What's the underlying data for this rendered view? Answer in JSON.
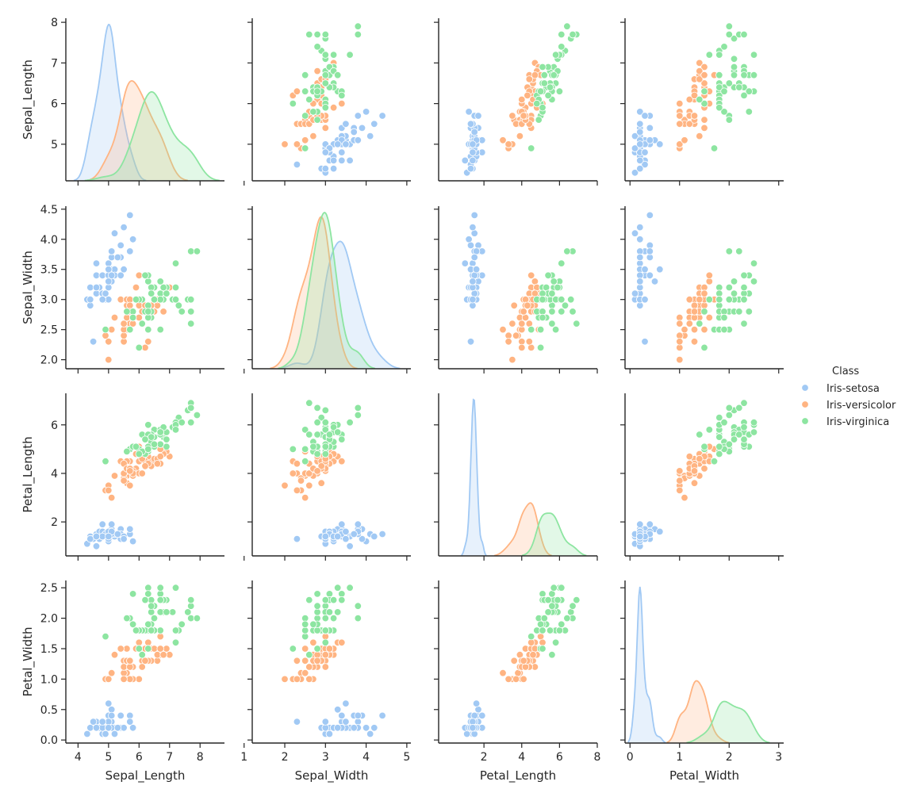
{
  "chart_data": {
    "type": "scatter",
    "variables": [
      "Sepal_Length",
      "Sepal_Width",
      "Petal_Length",
      "Petal_Width"
    ],
    "diagonal": "kde",
    "grid": false,
    "legend": {
      "title": "Class",
      "placement": "right",
      "entries": [
        "Iris-setosa",
        "Iris-versicolor",
        "Iris-virginica"
      ]
    },
    "axes": {
      "Sepal_Length": {
        "ticks": [
          4,
          5,
          6,
          7,
          8
        ],
        "y_range": [
          4.1,
          8.1
        ],
        "x_range": [
          3.6,
          8.8
        ]
      },
      "Sepal_Width": {
        "ticks": [
          1,
          2,
          3,
          4,
          5
        ],
        "ytick_labels": [
          "2.0",
          "2.5",
          "3.0",
          "3.5",
          "4.0",
          "4.5"
        ],
        "ytick_values": [
          2.0,
          2.5,
          3.0,
          3.5,
          4.0,
          4.5
        ],
        "y_range": [
          1.85,
          4.55
        ],
        "x_range": [
          1.2,
          5.1
        ]
      },
      "Petal_Length": {
        "ticks": [
          2,
          4,
          6,
          8
        ],
        "y_range": [
          0.6,
          7.3
        ],
        "x_range": [
          -0.4,
          8.0
        ]
      },
      "Petal_Width": {
        "ticks": [
          0,
          1,
          2,
          3
        ],
        "ytick_labels": [
          "0.0",
          "0.5",
          "1.0",
          "1.5",
          "2.0",
          "2.5"
        ],
        "ytick_values": [
          0.0,
          0.5,
          1.0,
          1.5,
          2.0,
          2.5
        ],
        "y_range": [
          -0.05,
          2.62
        ],
        "x_range": [
          -0.1,
          3.1
        ]
      }
    },
    "series": [
      {
        "name": "Iris-setosa",
        "color": "#a1c9f4",
        "points": [
          [
            5.1,
            3.5,
            1.4,
            0.2
          ],
          [
            4.9,
            3.0,
            1.4,
            0.2
          ],
          [
            4.7,
            3.2,
            1.3,
            0.2
          ],
          [
            4.6,
            3.1,
            1.5,
            0.2
          ],
          [
            5.0,
            3.6,
            1.4,
            0.2
          ],
          [
            5.4,
            3.9,
            1.7,
            0.4
          ],
          [
            4.6,
            3.4,
            1.4,
            0.3
          ],
          [
            5.0,
            3.4,
            1.5,
            0.2
          ],
          [
            4.4,
            2.9,
            1.4,
            0.2
          ],
          [
            4.9,
            3.1,
            1.5,
            0.1
          ],
          [
            5.4,
            3.7,
            1.5,
            0.2
          ],
          [
            4.8,
            3.4,
            1.6,
            0.2
          ],
          [
            4.8,
            3.0,
            1.4,
            0.1
          ],
          [
            4.3,
            3.0,
            1.1,
            0.1
          ],
          [
            5.8,
            4.0,
            1.2,
            0.2
          ],
          [
            5.7,
            4.4,
            1.5,
            0.4
          ],
          [
            5.4,
            3.9,
            1.3,
            0.4
          ],
          [
            5.1,
            3.5,
            1.4,
            0.3
          ],
          [
            5.7,
            3.8,
            1.7,
            0.3
          ],
          [
            5.1,
            3.8,
            1.5,
            0.3
          ],
          [
            5.4,
            3.4,
            1.7,
            0.2
          ],
          [
            5.1,
            3.7,
            1.5,
            0.4
          ],
          [
            4.6,
            3.6,
            1.0,
            0.2
          ],
          [
            5.1,
            3.3,
            1.7,
            0.5
          ],
          [
            4.8,
            3.4,
            1.9,
            0.2
          ],
          [
            5.0,
            3.0,
            1.6,
            0.2
          ],
          [
            5.0,
            3.4,
            1.6,
            0.4
          ],
          [
            5.2,
            3.5,
            1.5,
            0.2
          ],
          [
            5.2,
            3.4,
            1.4,
            0.2
          ],
          [
            4.7,
            3.2,
            1.6,
            0.2
          ],
          [
            4.8,
            3.1,
            1.6,
            0.2
          ],
          [
            5.4,
            3.4,
            1.5,
            0.4
          ],
          [
            5.2,
            4.1,
            1.5,
            0.1
          ],
          [
            5.5,
            4.2,
            1.4,
            0.2
          ],
          [
            4.9,
            3.1,
            1.5,
            0.1
          ],
          [
            5.0,
            3.2,
            1.2,
            0.2
          ],
          [
            5.5,
            3.5,
            1.3,
            0.2
          ],
          [
            4.9,
            3.1,
            1.5,
            0.1
          ],
          [
            4.4,
            3.0,
            1.3,
            0.2
          ],
          [
            5.1,
            3.4,
            1.5,
            0.2
          ],
          [
            5.0,
            3.5,
            1.3,
            0.3
          ],
          [
            4.5,
            2.3,
            1.3,
            0.3
          ],
          [
            4.4,
            3.2,
            1.3,
            0.2
          ],
          [
            5.0,
            3.5,
            1.6,
            0.6
          ],
          [
            5.1,
            3.8,
            1.9,
            0.4
          ],
          [
            4.8,
            3.0,
            1.4,
            0.3
          ],
          [
            5.1,
            3.8,
            1.6,
            0.2
          ],
          [
            4.6,
            3.2,
            1.4,
            0.2
          ],
          [
            5.3,
            3.7,
            1.5,
            0.2
          ],
          [
            5.0,
            3.3,
            1.4,
            0.2
          ]
        ]
      },
      {
        "name": "Iris-versicolor",
        "color": "#ffb482",
        "points": [
          [
            7.0,
            3.2,
            4.7,
            1.4
          ],
          [
            6.4,
            3.2,
            4.5,
            1.5
          ],
          [
            6.9,
            3.1,
            4.9,
            1.5
          ],
          [
            5.5,
            2.3,
            4.0,
            1.3
          ],
          [
            6.5,
            2.8,
            4.6,
            1.5
          ],
          [
            5.7,
            2.8,
            4.5,
            1.3
          ],
          [
            6.3,
            3.3,
            4.7,
            1.6
          ],
          [
            4.9,
            2.4,
            3.3,
            1.0
          ],
          [
            6.6,
            2.9,
            4.6,
            1.3
          ],
          [
            5.2,
            2.7,
            3.9,
            1.4
          ],
          [
            5.0,
            2.0,
            3.5,
            1.0
          ],
          [
            5.9,
            3.0,
            4.2,
            1.5
          ],
          [
            6.0,
            2.2,
            4.0,
            1.0
          ],
          [
            6.1,
            2.9,
            4.7,
            1.4
          ],
          [
            5.6,
            2.9,
            3.6,
            1.3
          ],
          [
            6.7,
            3.1,
            4.4,
            1.4
          ],
          [
            5.6,
            3.0,
            4.5,
            1.5
          ],
          [
            5.8,
            2.7,
            4.1,
            1.0
          ],
          [
            6.2,
            2.2,
            4.5,
            1.5
          ],
          [
            5.6,
            2.5,
            3.9,
            1.1
          ],
          [
            5.9,
            3.2,
            4.8,
            1.8
          ],
          [
            6.1,
            2.8,
            4.0,
            1.3
          ],
          [
            6.3,
            2.5,
            4.9,
            1.5
          ],
          [
            6.1,
            2.8,
            4.7,
            1.2
          ],
          [
            6.4,
            2.9,
            4.3,
            1.3
          ],
          [
            6.6,
            3.0,
            4.4,
            1.4
          ],
          [
            6.8,
            2.8,
            4.8,
            1.4
          ],
          [
            6.7,
            3.0,
            5.0,
            1.7
          ],
          [
            6.0,
            2.9,
            4.5,
            1.5
          ],
          [
            5.7,
            2.6,
            3.5,
            1.0
          ],
          [
            5.5,
            2.4,
            3.8,
            1.1
          ],
          [
            5.5,
            2.4,
            3.7,
            1.0
          ],
          [
            5.8,
            2.7,
            3.9,
            1.2
          ],
          [
            6.0,
            2.7,
            5.1,
            1.6
          ],
          [
            5.4,
            3.0,
            4.5,
            1.5
          ],
          [
            6.0,
            3.4,
            4.5,
            1.6
          ],
          [
            6.7,
            3.1,
            4.7,
            1.5
          ],
          [
            6.3,
            2.3,
            4.4,
            1.3
          ],
          [
            5.6,
            3.0,
            4.1,
            1.3
          ],
          [
            5.5,
            2.5,
            4.0,
            1.3
          ],
          [
            5.5,
            2.6,
            4.4,
            1.2
          ],
          [
            6.1,
            3.0,
            4.6,
            1.4
          ],
          [
            5.8,
            2.6,
            4.0,
            1.2
          ],
          [
            5.0,
            2.3,
            3.3,
            1.0
          ],
          [
            5.6,
            2.7,
            4.2,
            1.3
          ],
          [
            5.7,
            3.0,
            4.2,
            1.2
          ],
          [
            5.7,
            2.9,
            4.2,
            1.3
          ],
          [
            6.2,
            2.9,
            4.3,
            1.3
          ],
          [
            5.1,
            2.5,
            3.0,
            1.1
          ],
          [
            5.7,
            2.8,
            4.1,
            1.3
          ]
        ]
      },
      {
        "name": "Iris-virginica",
        "color": "#8de5a1",
        "points": [
          [
            6.3,
            3.3,
            6.0,
            2.5
          ],
          [
            5.8,
            2.7,
            5.1,
            1.9
          ],
          [
            7.1,
            3.0,
            5.9,
            2.1
          ],
          [
            6.3,
            2.9,
            5.6,
            1.8
          ],
          [
            6.5,
            3.0,
            5.8,
            2.2
          ],
          [
            7.6,
            3.0,
            6.6,
            2.1
          ],
          [
            4.9,
            2.5,
            4.5,
            1.7
          ],
          [
            7.3,
            2.9,
            6.3,
            1.8
          ],
          [
            6.7,
            2.5,
            5.8,
            1.8
          ],
          [
            7.2,
            3.6,
            6.1,
            2.5
          ],
          [
            6.5,
            3.2,
            5.1,
            2.0
          ],
          [
            6.4,
            2.7,
            5.3,
            1.9
          ],
          [
            6.8,
            3.0,
            5.5,
            2.1
          ],
          [
            5.7,
            2.5,
            5.0,
            2.0
          ],
          [
            5.8,
            2.8,
            5.1,
            2.4
          ],
          [
            6.4,
            3.2,
            5.3,
            2.3
          ],
          [
            6.5,
            3.0,
            5.5,
            1.8
          ],
          [
            7.7,
            3.8,
            6.7,
            2.2
          ],
          [
            7.7,
            2.6,
            6.9,
            2.3
          ],
          [
            6.0,
            2.2,
            5.0,
            1.5
          ],
          [
            6.9,
            3.2,
            5.7,
            2.3
          ],
          [
            5.6,
            2.8,
            4.9,
            2.0
          ],
          [
            7.7,
            2.8,
            6.7,
            2.0
          ],
          [
            6.3,
            2.7,
            4.9,
            1.8
          ],
          [
            6.7,
            3.3,
            5.7,
            2.1
          ],
          [
            7.2,
            3.2,
            6.0,
            1.8
          ],
          [
            6.2,
            2.8,
            4.8,
            1.8
          ],
          [
            6.1,
            3.0,
            4.9,
            1.8
          ],
          [
            6.4,
            2.8,
            5.6,
            2.1
          ],
          [
            7.2,
            3.0,
            5.8,
            1.6
          ],
          [
            7.4,
            2.8,
            6.1,
            1.9
          ],
          [
            7.9,
            3.8,
            6.4,
            2.0
          ],
          [
            6.4,
            2.8,
            5.6,
            2.2
          ],
          [
            6.3,
            2.8,
            5.1,
            1.5
          ],
          [
            6.1,
            2.6,
            5.6,
            1.4
          ],
          [
            7.7,
            3.0,
            6.1,
            2.3
          ],
          [
            6.3,
            3.4,
            5.6,
            2.4
          ],
          [
            6.4,
            3.1,
            5.5,
            1.8
          ],
          [
            6.0,
            3.0,
            4.8,
            1.8
          ],
          [
            6.9,
            3.1,
            5.4,
            2.1
          ],
          [
            6.7,
            3.1,
            5.6,
            2.4
          ],
          [
            6.9,
            3.1,
            5.1,
            2.3
          ],
          [
            5.8,
            2.7,
            5.1,
            1.9
          ],
          [
            6.8,
            3.2,
            5.9,
            2.3
          ],
          [
            6.7,
            3.3,
            5.7,
            2.5
          ],
          [
            6.7,
            3.0,
            5.2,
            2.3
          ],
          [
            6.3,
            2.5,
            5.0,
            1.9
          ],
          [
            6.5,
            3.0,
            5.2,
            2.0
          ],
          [
            6.2,
            3.4,
            5.4,
            2.3
          ],
          [
            5.9,
            3.0,
            5.1,
            1.8
          ]
        ]
      }
    ]
  }
}
